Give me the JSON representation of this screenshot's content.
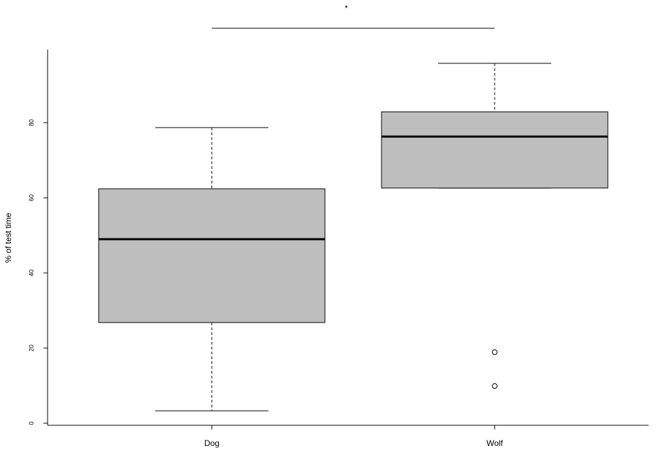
{
  "chart_data": {
    "type": "box",
    "ylabel": "% of test time",
    "annotation": "*",
    "categories": [
      "Dog",
      "Wolf"
    ],
    "color": "#bebebe",
    "boxes": [
      {
        "min": 3.3,
        "q1": 26.8,
        "median": 49.0,
        "q3": 62.4,
        "max": 78.7,
        "outliers": []
      },
      {
        "min": 62.6,
        "q1": 62.6,
        "median": 76.3,
        "q3": 82.9,
        "max": 95.8,
        "outliers": [
          18.9,
          9.9
        ]
      }
    ],
    "ylim": [
      -0.55,
      99.45
    ],
    "yticks": [
      0,
      20,
      40,
      60,
      80
    ]
  }
}
